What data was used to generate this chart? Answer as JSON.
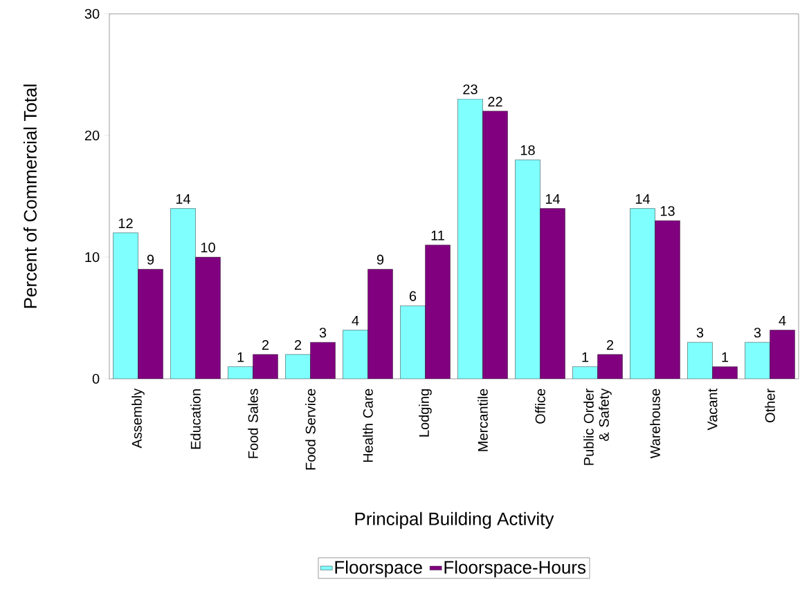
{
  "chart_data": {
    "type": "bar",
    "xlabel": "Principal Building Activity",
    "ylabel": "Percent of Commercial Total",
    "categories": [
      "Assembly",
      "Education",
      "Food Sales",
      "Food Service",
      "Health Care",
      "Lodging",
      "Mercantile",
      "Office",
      "Public Order & Safety",
      "Warehouse",
      "Vacant",
      "Other"
    ],
    "series": [
      {
        "name": "Floorspace",
        "color": "#80ffff",
        "values": [
          12,
          14,
          1,
          2,
          4,
          6,
          23,
          18,
          1,
          14,
          3,
          3
        ]
      },
      {
        "name": "Floorspace-Hours",
        "color": "#800080",
        "values": [
          9,
          10,
          2,
          3,
          9,
          11,
          22,
          14,
          2,
          13,
          1,
          4
        ]
      }
    ],
    "ylim": [
      0,
      30
    ],
    "yticks": [
      0,
      10,
      20,
      30
    ],
    "data_labels": true,
    "legend": "bottom",
    "grid": false
  }
}
